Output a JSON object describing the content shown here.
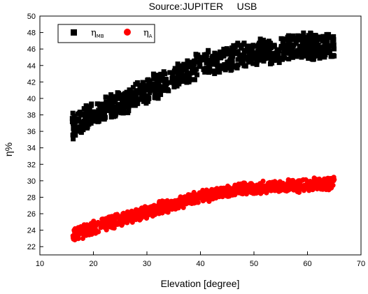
{
  "chart_data": {
    "type": "scatter",
    "title": "Source:JUPITER     USB",
    "xlabel": "Elevation [degree]",
    "ylabel": "η%",
    "xlim": [
      10,
      70
    ],
    "ylim": [
      21,
      50
    ],
    "xticks": [
      10,
      20,
      30,
      40,
      50,
      60,
      70
    ],
    "yticks": [
      22,
      24,
      26,
      28,
      30,
      32,
      34,
      36,
      38,
      40,
      42,
      44,
      46,
      48,
      50
    ],
    "grid": false,
    "legend_position": "top-left",
    "series": [
      {
        "name": "ηMB",
        "symbol": "η",
        "subscript": "MB",
        "marker": "square",
        "color": "#000000",
        "x_range": [
          16,
          65
        ],
        "trend": [
          [
            16,
            36.5
          ],
          [
            20,
            38.0
          ],
          [
            25,
            39.5
          ],
          [
            30,
            41.0
          ],
          [
            35,
            42.5
          ],
          [
            40,
            44.0
          ],
          [
            45,
            45.0
          ],
          [
            50,
            45.6
          ],
          [
            55,
            46.0
          ],
          [
            60,
            46.3
          ],
          [
            65,
            46.5
          ]
        ],
        "spread": 1.3
      },
      {
        "name": "ηA",
        "symbol": "η",
        "subscript": "A",
        "marker": "circle",
        "color": "#ff0000",
        "x_range": [
          16,
          65
        ],
        "trend": [
          [
            16,
            23.3
          ],
          [
            20,
            24.3
          ],
          [
            25,
            25.3
          ],
          [
            30,
            26.2
          ],
          [
            35,
            27.2
          ],
          [
            40,
            28.1
          ],
          [
            45,
            28.8
          ],
          [
            50,
            29.1
          ],
          [
            55,
            29.3
          ],
          [
            60,
            29.5
          ],
          [
            65,
            29.6
          ]
        ],
        "spread": 0.65
      }
    ]
  }
}
